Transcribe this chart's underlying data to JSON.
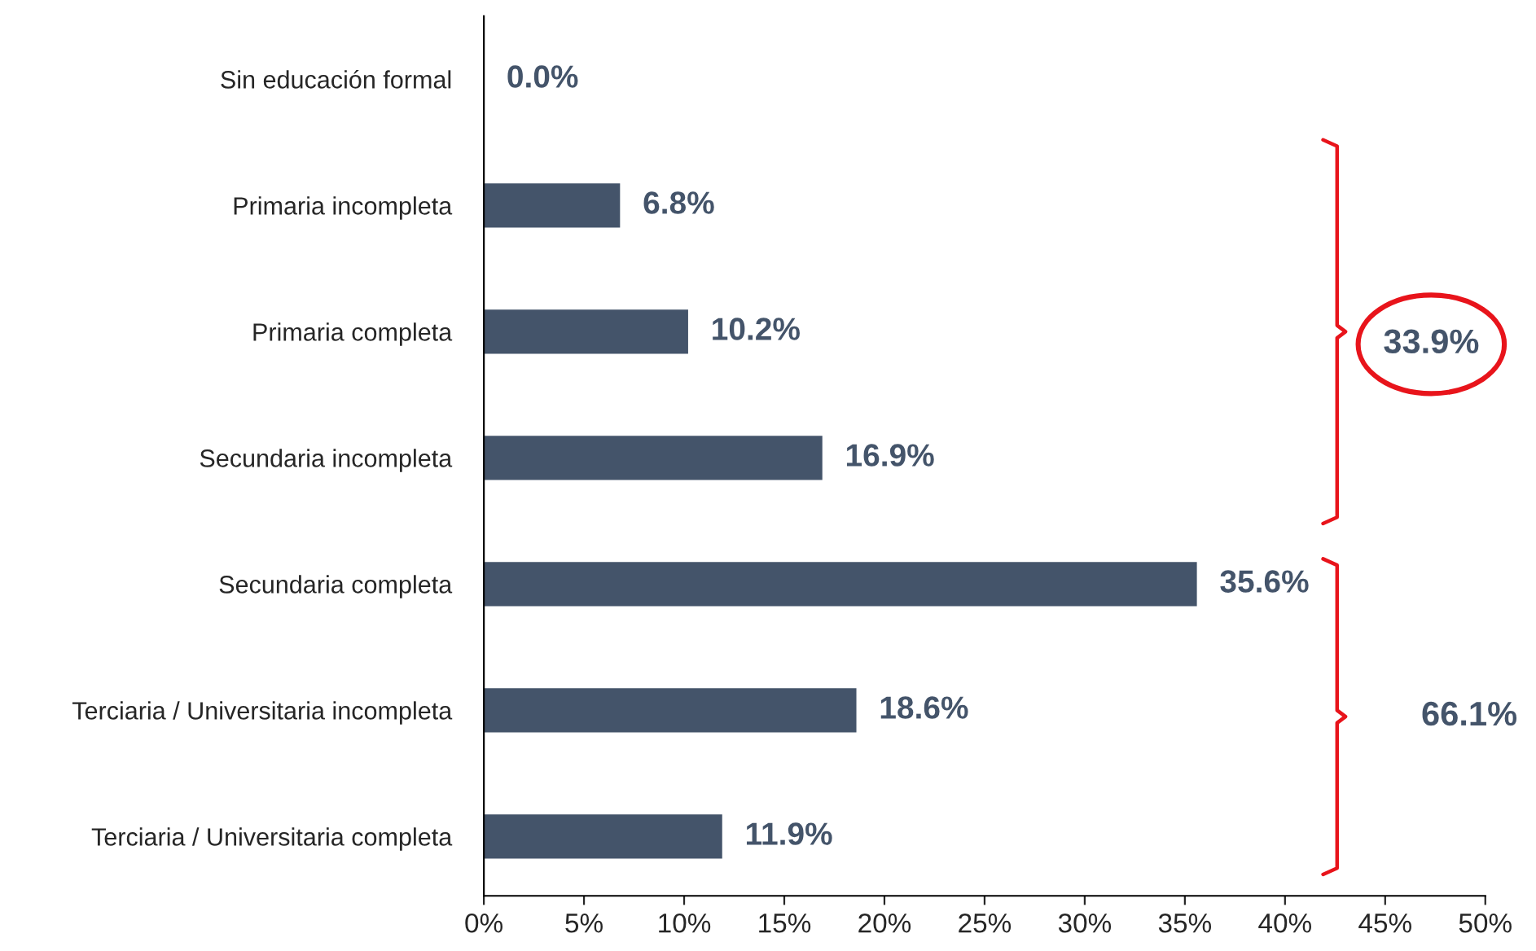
{
  "chart_data": {
    "type": "bar",
    "orientation": "horizontal",
    "categories": [
      "Sin educación formal",
      "Primaria incompleta",
      "Primaria completa",
      "Secundaria incompleta",
      "Secundaria completa",
      "Terciaria / Universitaria incompleta",
      "Terciaria / Universitaria completa"
    ],
    "values": [
      0.0,
      6.8,
      10.2,
      16.9,
      35.6,
      18.6,
      11.9
    ],
    "value_labels": [
      "0.0%",
      "6.8%",
      "10.2%",
      "16.9%",
      "35.6%",
      "18.6%",
      "11.9%"
    ],
    "color": "#44546a",
    "xlim": [
      0,
      50
    ],
    "xticks": [
      {
        "value": 0,
        "label": "0%"
      },
      {
        "value": 5,
        "label": "5%"
      },
      {
        "value": 10,
        "label": "10%"
      },
      {
        "value": 15,
        "label": "15%"
      },
      {
        "value": 20,
        "label": "20%"
      },
      {
        "value": 25,
        "label": "25%"
      },
      {
        "value": 30,
        "label": "30%"
      },
      {
        "value": 35,
        "label": "35%"
      },
      {
        "value": 40,
        "label": "40%"
      },
      {
        "value": 45,
        "label": "45%"
      },
      {
        "value": 50,
        "label": "50%"
      }
    ],
    "annotations": [
      "33.9%",
      "66.1%"
    ],
    "grid": false,
    "legend": false
  }
}
